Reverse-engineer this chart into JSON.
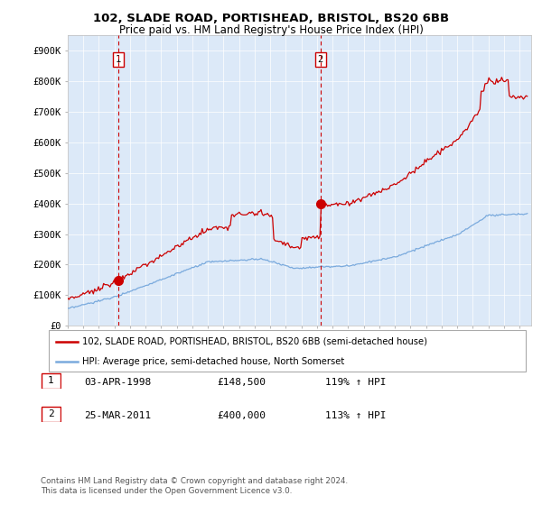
{
  "title1": "102, SLADE ROAD, PORTISHEAD, BRISTOL, BS20 6BB",
  "title2": "Price paid vs. HM Land Registry's House Price Index (HPI)",
  "legend_line1": "102, SLADE ROAD, PORTISHEAD, BRISTOL, BS20 6BB (semi-detached house)",
  "legend_line2": "HPI: Average price, semi-detached house, North Somerset",
  "footnote": "Contains HM Land Registry data © Crown copyright and database right 2024.\nThis data is licensed under the Open Government Licence v3.0.",
  "sale1_label": "1",
  "sale1_date": "03-APR-1998",
  "sale1_price": "£148,500",
  "sale1_hpi": "119% ↑ HPI",
  "sale2_label": "2",
  "sale2_date": "25-MAR-2011",
  "sale2_price": "£400,000",
  "sale2_hpi": "113% ↑ HPI",
  "background_color": "#dce9f8",
  "red_line_color": "#cc0000",
  "blue_line_color": "#7aaadd",
  "dashed_color": "#cc0000",
  "ylim": [
    0,
    950000
  ],
  "yticks": [
    0,
    100000,
    200000,
    300000,
    400000,
    500000,
    600000,
    700000,
    800000,
    900000
  ],
  "ytick_labels": [
    "£0",
    "£100K",
    "£200K",
    "£300K",
    "£400K",
    "£500K",
    "£600K",
    "£700K",
    "£800K",
    "£900K"
  ],
  "sale1_x": 1998.25,
  "sale1_y": 148500,
  "sale2_x": 2011.23,
  "sale2_y": 400000,
  "xlim_left": 1995.0,
  "xlim_right": 2024.75
}
